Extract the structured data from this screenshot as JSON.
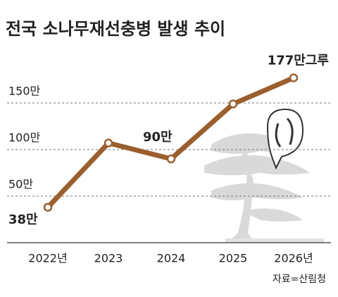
{
  "chart_data": {
    "type": "line",
    "title": "전국 소나무재선충병 발생 추이",
    "categories": [
      "2022년",
      "2023",
      "2024",
      "2025",
      "2026년"
    ],
    "values": [
      38,
      107,
      90,
      149,
      177
    ],
    "value_labels": [
      "38만",
      null,
      "90만",
      null,
      "177만그루"
    ],
    "color": "#9a5f2e",
    "ylim": [
      0,
      200
    ],
    "yticks": [
      {
        "value": 50,
        "label": "50만"
      },
      {
        "value": 100,
        "label": "100만"
      },
      {
        "value": 150,
        "label": "150만"
      }
    ],
    "grid": true,
    "source": "자료=산림청"
  }
}
